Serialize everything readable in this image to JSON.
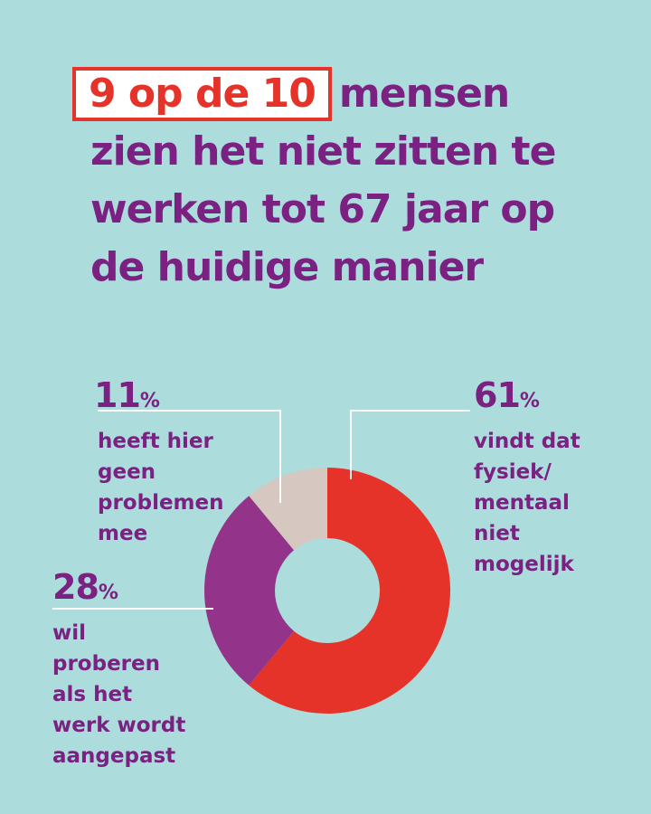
{
  "headline": {
    "highlight": "9 op de 10",
    "line1_rest": "mensen",
    "line2": "zien het niet zitten te",
    "line3": "werken tot 67 jaar op",
    "line4": "de huidige manier"
  },
  "colors": {
    "background": "#acdcdc",
    "text_purple": "#7b2182",
    "red": "#e53329",
    "purple": "#933389",
    "beige": "#d6c8c0",
    "leader_lines": "#ffffff"
  },
  "chart_data": {
    "type": "pie",
    "variant": "donut",
    "title": "9 op de 10 mensen zien het niet zitten te werken tot 67 jaar op de huidige manier",
    "slices": [
      {
        "key": "s61",
        "value": 61,
        "label": "61",
        "unit": "%",
        "description": [
          "vindt dat",
          "fysiek/",
          "mentaal",
          "niet",
          "mogelijk"
        ],
        "color": "#e53329"
      },
      {
        "key": "s28",
        "value": 28,
        "label": "28",
        "unit": "%",
        "description": [
          "wil",
          "proberen",
          "als het",
          "werk wordt",
          "aangepast"
        ],
        "color": "#933389"
      },
      {
        "key": "s11",
        "value": 11,
        "label": "11",
        "unit": "%",
        "description": [
          "heeft hier",
          "geen",
          "problemen",
          "mee"
        ],
        "color": "#d6c8c0"
      }
    ]
  }
}
